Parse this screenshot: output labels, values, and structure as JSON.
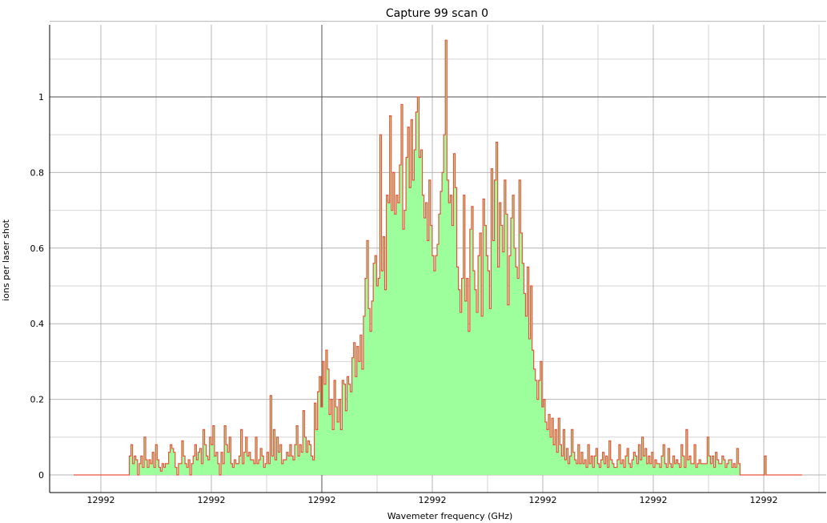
{
  "chart_data": {
    "type": "area",
    "title": "Capture 99 scan 0",
    "xlabel": "Wavemeter frequency (GHz)",
    "ylabel": "ions per laser shot",
    "x_tick_labels": [
      "12992",
      "12992",
      "12992",
      "12992",
      "12992",
      "12992",
      "12992"
    ],
    "y_tick_labels": [
      "0",
      "0.2",
      "0.4",
      "0.6",
      "0.8",
      "1"
    ],
    "ylim": [
      0,
      1.2
    ],
    "grid": true,
    "colors": {
      "line": "#e8523a",
      "fill": "#9cff9c",
      "grid": "#b4b4b4",
      "major_grid": "#505050"
    },
    "series": [
      {
        "values": [
          0,
          0,
          0,
          0,
          0,
          0,
          0,
          0,
          0,
          0,
          0,
          0,
          0,
          0,
          0,
          0,
          0,
          0,
          0,
          0,
          0,
          0,
          0,
          0,
          0,
          0,
          0,
          0,
          0,
          0,
          0,
          0,
          0,
          0,
          0.05,
          0.08,
          0.03,
          0.05,
          0.04,
          0,
          0.03,
          0.05,
          0.02,
          0.1,
          0.04,
          0.02,
          0.04,
          0.03,
          0.06,
          0.02,
          0.08,
          0.04,
          0.02,
          0.01,
          0.03,
          0.02,
          0.03,
          0.03,
          0.06,
          0.08,
          0.07,
          0.06,
          0.02,
          0,
          0.03,
          0.03,
          0.09,
          0.05,
          0.03,
          0.02,
          0.04,
          0,
          0.03,
          0.05,
          0.08,
          0.04,
          0.06,
          0.07,
          0.03,
          0.12,
          0.08,
          0.05,
          0.04,
          0.1,
          0.08,
          0.13,
          0.05,
          0.06,
          0.03,
          0,
          0.06,
          0.03,
          0.13,
          0.08,
          0.06,
          0.1,
          0.03,
          0.02,
          0.04,
          0.03,
          0.03,
          0.05,
          0.12,
          0.03,
          0.06,
          0.1,
          0.05,
          0.06,
          0.04,
          0.04,
          0.03,
          0.1,
          0.03,
          0.04,
          0.07,
          0.05,
          0.02,
          0.03,
          0.06,
          0.03,
          0.21,
          0.05,
          0.12,
          0.04,
          0.1,
          0.06,
          0.08,
          0.03,
          0.04,
          0.04,
          0.06,
          0.05,
          0.08,
          0.05,
          0.04,
          0.08,
          0.13,
          0.05,
          0.08,
          0.06,
          0.17,
          0.1,
          0.06,
          0.09,
          0.08,
          0.05,
          0.04,
          0.19,
          0.12,
          0.22,
          0.26,
          0.18,
          0.3,
          0.24,
          0.33,
          0.28,
          0.16,
          0.2,
          0.12,
          0.25,
          0.18,
          0.14,
          0.2,
          0.12,
          0.25,
          0.24,
          0.17,
          0.26,
          0.24,
          0.22,
          0.31,
          0.35,
          0.26,
          0.34,
          0.3,
          0.37,
          0.28,
          0.42,
          0.52,
          0.62,
          0.44,
          0.38,
          0.46,
          0.56,
          0.58,
          0.5,
          0.52,
          0.9,
          0.54,
          0.63,
          0.49,
          0.74,
          0.72,
          0.95,
          0.7,
          0.8,
          0.69,
          0.74,
          0.72,
          0.82,
          0.98,
          0.65,
          0.7,
          0.84,
          0.92,
          0.76,
          0.94,
          0.78,
          0.86,
          0.96,
          1.0,
          0.84,
          0.86,
          0.74,
          0.68,
          0.72,
          0.62,
          0.78,
          0.66,
          0.58,
          0.54,
          0.58,
          0.61,
          0.69,
          0.75,
          0.8,
          0.9,
          1.15,
          0.78,
          0.72,
          0.74,
          0.66,
          0.85,
          0.76,
          0.55,
          0.49,
          0.43,
          0.52,
          0.74,
          0.46,
          0.52,
          0.38,
          0.65,
          0.71,
          0.54,
          0.49,
          0.43,
          0.58,
          0.64,
          0.42,
          0.73,
          0.66,
          0.58,
          0.54,
          0.44,
          0.81,
          0.62,
          0.78,
          0.88,
          0.55,
          0.72,
          0.66,
          0.59,
          0.78,
          0.69,
          0.45,
          0.58,
          0.68,
          0.74,
          0.6,
          0.55,
          0.52,
          0.78,
          0.64,
          0.56,
          0.48,
          0.42,
          0.55,
          0.36,
          0.5,
          0.33,
          0.28,
          0.25,
          0.2,
          0.25,
          0.3,
          0.18,
          0.2,
          0.14,
          0.12,
          0.16,
          0.1,
          0.15,
          0.08,
          0.12,
          0.06,
          0.15,
          0.08,
          0.05,
          0.12,
          0.04,
          0.07,
          0.03,
          0.05,
          0.12,
          0.06,
          0.04,
          0.03,
          0.08,
          0.03,
          0.06,
          0.03,
          0.04,
          0.02,
          0.08,
          0.03,
          0.05,
          0.02,
          0.05,
          0.07,
          0.03,
          0.02,
          0.04,
          0.06,
          0.03,
          0.05,
          0.02,
          0.09,
          0.04,
          0.03,
          0.02,
          0.02,
          0.04,
          0.08,
          0.03,
          0.04,
          0.02,
          0.05,
          0.07,
          0.03,
          0.02,
          0.04,
          0.06,
          0.05,
          0.03,
          0.08,
          0.04,
          0.1,
          0.05,
          0.07,
          0.03,
          0.05,
          0.03,
          0.06,
          0.02,
          0.04,
          0.03,
          0.03,
          0.02,
          0.05,
          0.08,
          0.03,
          0.02,
          0.07,
          0.03,
          0.02,
          0.05,
          0.03,
          0.04,
          0.03,
          0.02,
          0.08,
          0.05,
          0.02,
          0.12,
          0.04,
          0.05,
          0.03,
          0.03,
          0.08,
          0.02,
          0.03,
          0.04,
          0.03,
          0.03,
          0.03,
          0.03,
          0.1,
          0.05,
          0.03,
          0.05,
          0.02,
          0.06,
          0.04,
          0.03,
          0.03,
          0.05,
          0.04,
          0.02,
          0.03,
          0.04,
          0.04,
          0.02,
          0.03,
          0.02,
          0.07,
          0.03,
          0,
          0,
          0,
          0,
          0,
          0,
          0,
          0,
          0,
          0,
          0,
          0,
          0,
          0,
          0,
          0.05,
          0,
          0,
          0,
          0,
          0,
          0,
          0,
          0,
          0,
          0,
          0,
          0,
          0,
          0,
          0,
          0,
          0,
          0,
          0,
          0,
          0,
          0
        ]
      }
    ]
  }
}
